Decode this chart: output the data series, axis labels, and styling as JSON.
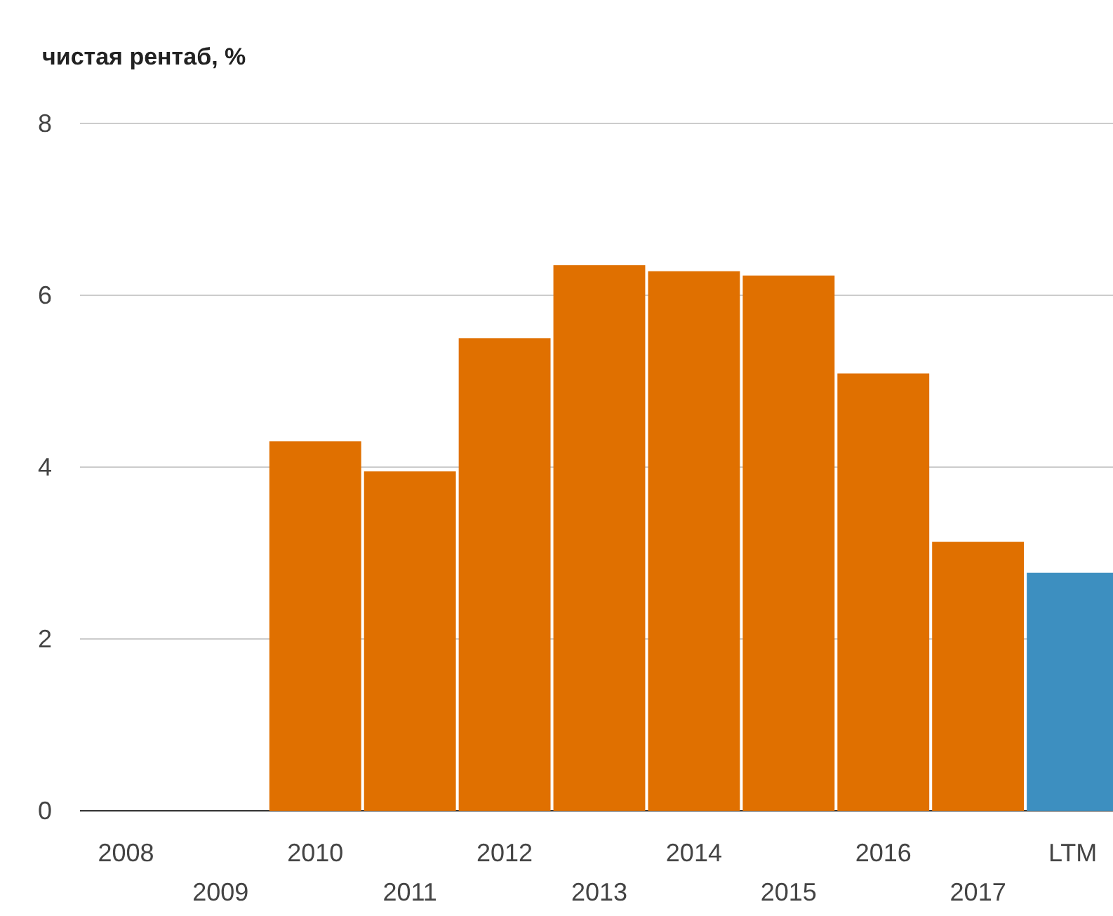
{
  "chart_data": {
    "type": "bar",
    "title": "чистая рентаб, %",
    "categories": [
      "2008",
      "2009",
      "2010",
      "2011",
      "2012",
      "2013",
      "2014",
      "2015",
      "2016",
      "2017",
      "LTM"
    ],
    "values": [
      0,
      0,
      4.3,
      3.95,
      5.5,
      6.35,
      6.28,
      6.23,
      5.09,
      3.13,
      2.77
    ],
    "colors": [
      "#e07000",
      "#e07000",
      "#e07000",
      "#e07000",
      "#e07000",
      "#e07000",
      "#e07000",
      "#e07000",
      "#e07000",
      "#e07000",
      "#3d8fc0"
    ],
    "ylim": [
      0,
      8
    ],
    "yticks": [
      0,
      2,
      4,
      6,
      8
    ],
    "grid": "y"
  }
}
